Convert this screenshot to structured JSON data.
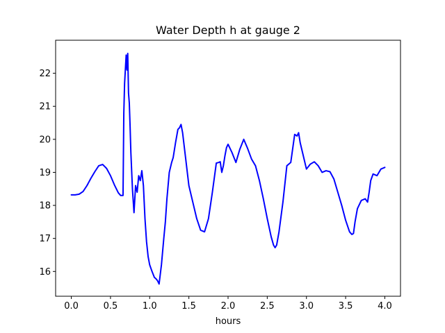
{
  "chart_data": {
    "type": "line",
    "title": "Water Depth h at gauge 2",
    "xlabel": "hours",
    "ylabel": "",
    "xlim": [
      -0.2,
      4.2
    ],
    "ylim": [
      15.25,
      23.0
    ],
    "xticks": [
      0.0,
      0.5,
      1.0,
      1.5,
      2.0,
      2.5,
      3.0,
      3.5,
      4.0
    ],
    "xtick_labels": [
      "0.0",
      "0.5",
      "1.0",
      "1.5",
      "2.0",
      "2.5",
      "3.0",
      "3.5",
      "4.0"
    ],
    "yticks": [
      16,
      17,
      18,
      19,
      20,
      21,
      22
    ],
    "ytick_labels": [
      "16",
      "17",
      "18",
      "19",
      "20",
      "21",
      "22"
    ],
    "grid": false,
    "series": [
      {
        "color": "#0000ff",
        "x": [
          0.0,
          0.05,
          0.1,
          0.15,
          0.2,
          0.25,
          0.3,
          0.35,
          0.4,
          0.45,
          0.5,
          0.55,
          0.6,
          0.63,
          0.66,
          0.67,
          0.68,
          0.7,
          0.71,
          0.72,
          0.73,
          0.74,
          0.75,
          0.76,
          0.78,
          0.8,
          0.82,
          0.84,
          0.86,
          0.88,
          0.9,
          0.92,
          0.94,
          0.96,
          0.98,
          1.0,
          1.03,
          1.06,
          1.08,
          1.1,
          1.12,
          1.15,
          1.18,
          1.2,
          1.22,
          1.25,
          1.28,
          1.3,
          1.33,
          1.36,
          1.38,
          1.4,
          1.42,
          1.44,
          1.46,
          1.48,
          1.5,
          1.55,
          1.6,
          1.65,
          1.7,
          1.75,
          1.8,
          1.85,
          1.88,
          1.9,
          1.92,
          1.94,
          1.96,
          1.98,
          2.0,
          2.05,
          2.1,
          2.15,
          2.2,
          2.25,
          2.3,
          2.35,
          2.4,
          2.45,
          2.5,
          2.55,
          2.58,
          2.6,
          2.62,
          2.65,
          2.7,
          2.75,
          2.8,
          2.85,
          2.88,
          2.9,
          2.92,
          2.95,
          3.0,
          3.05,
          3.1,
          3.15,
          3.2,
          3.25,
          3.3,
          3.35,
          3.4,
          3.45,
          3.5,
          3.55,
          3.58,
          3.6,
          3.62,
          3.65,
          3.7,
          3.75,
          3.78,
          3.8,
          3.82,
          3.85,
          3.9,
          3.95,
          4.0
        ],
        "y": [
          18.32,
          18.32,
          18.34,
          18.42,
          18.6,
          18.82,
          19.02,
          19.2,
          19.24,
          19.12,
          18.9,
          18.62,
          18.38,
          18.3,
          18.3,
          20.8,
          21.7,
          22.55,
          22.1,
          22.6,
          21.4,
          21.1,
          20.4,
          19.6,
          18.5,
          17.78,
          18.6,
          18.4,
          18.9,
          18.75,
          19.05,
          18.6,
          17.6,
          16.9,
          16.45,
          16.2,
          16.0,
          15.82,
          15.78,
          15.72,
          15.62,
          16.2,
          17.0,
          17.5,
          18.2,
          19.0,
          19.3,
          19.45,
          19.9,
          20.3,
          20.35,
          20.45,
          20.2,
          19.8,
          19.4,
          19.0,
          18.6,
          18.1,
          17.6,
          17.25,
          17.2,
          17.6,
          18.4,
          19.28,
          19.3,
          19.32,
          19.0,
          19.2,
          19.5,
          19.75,
          19.85,
          19.6,
          19.3,
          19.7,
          20.0,
          19.72,
          19.4,
          19.2,
          18.75,
          18.2,
          17.6,
          17.05,
          16.8,
          16.72,
          16.8,
          17.2,
          18.1,
          19.2,
          19.3,
          20.15,
          20.1,
          20.2,
          19.9,
          19.6,
          19.1,
          19.25,
          19.32,
          19.2,
          19.0,
          19.05,
          19.02,
          18.8,
          18.4,
          18.0,
          17.55,
          17.2,
          17.12,
          17.15,
          17.5,
          17.9,
          18.15,
          18.2,
          18.1,
          18.4,
          18.75,
          18.95,
          18.9,
          19.1,
          19.15
        ]
      }
    ]
  }
}
